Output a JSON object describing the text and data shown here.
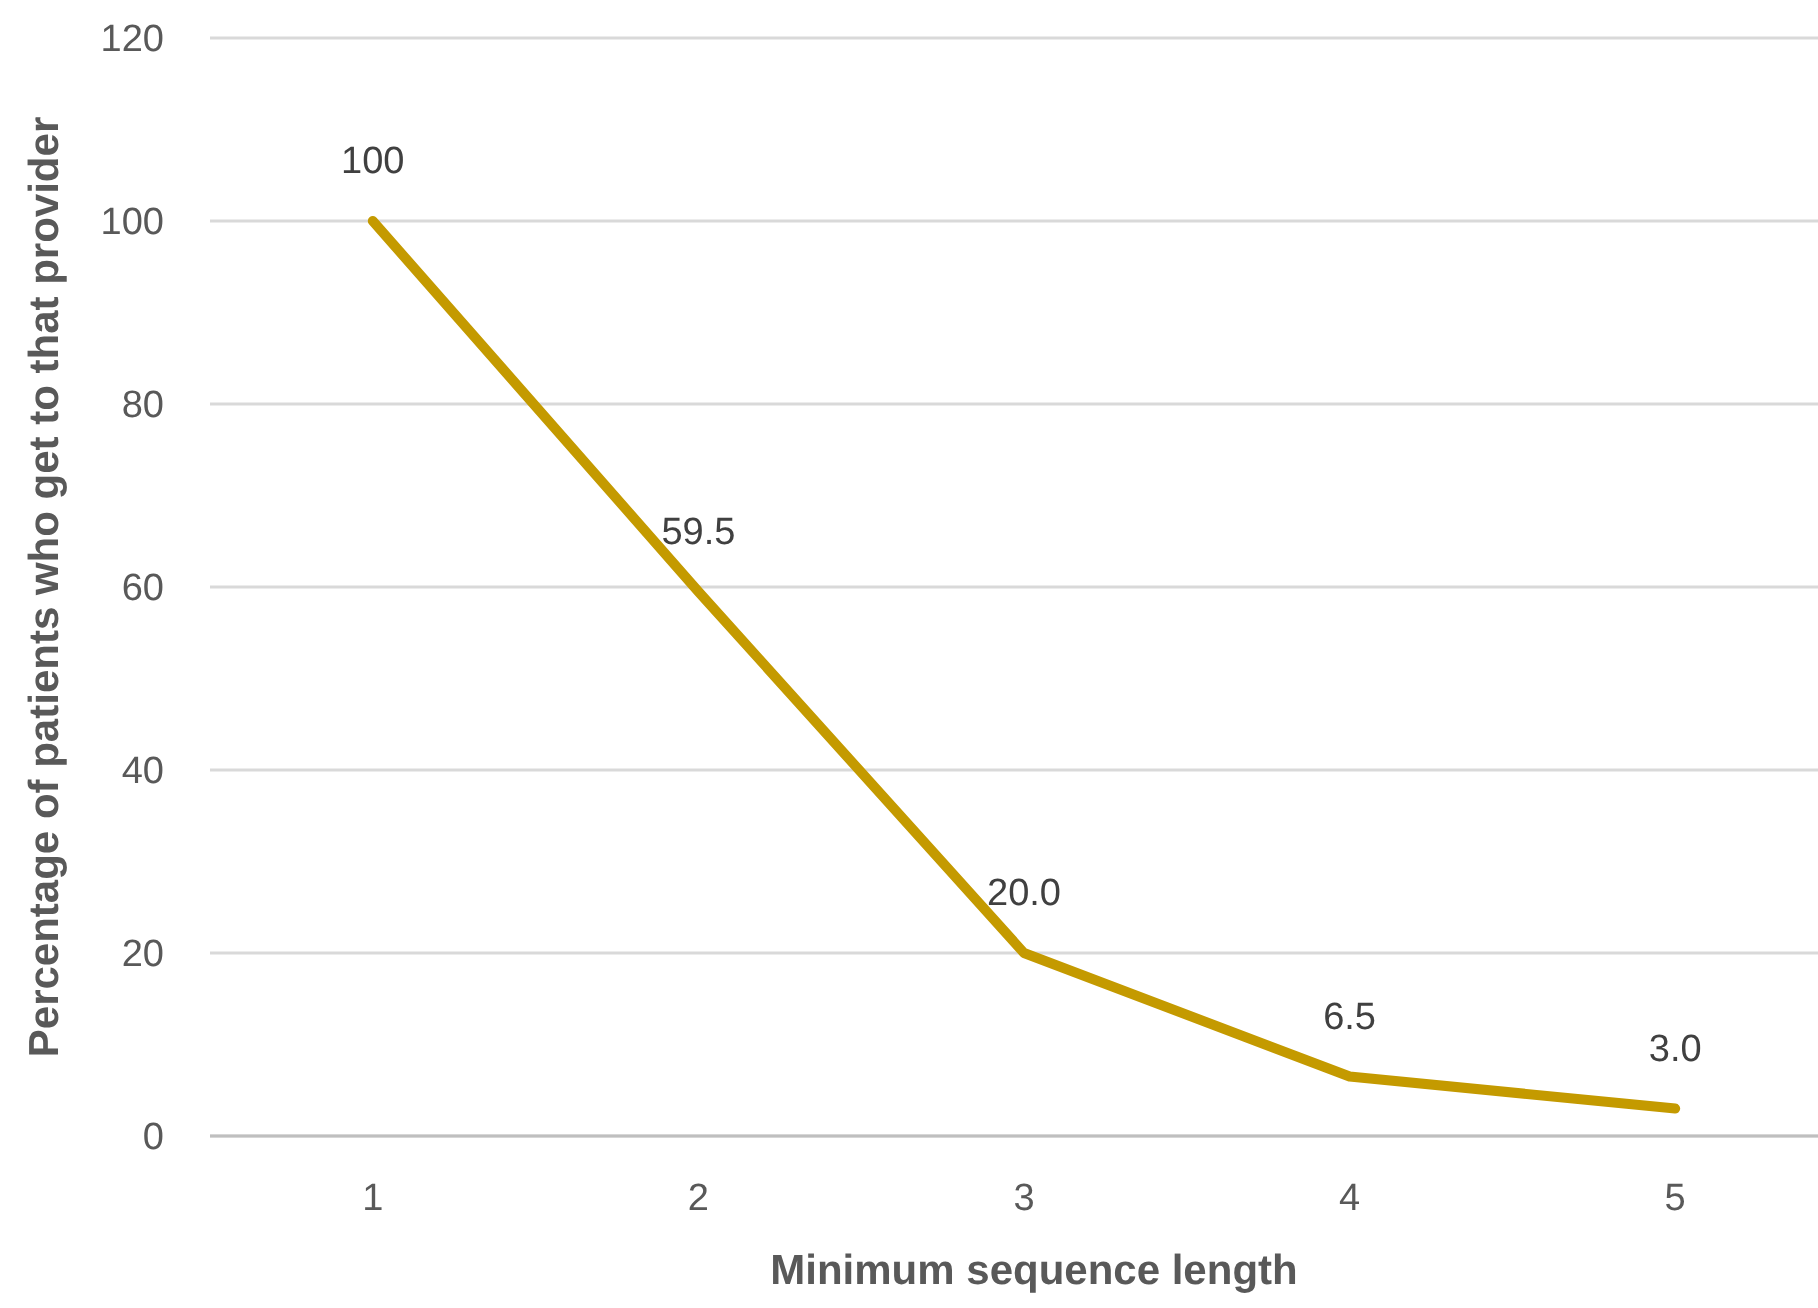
{
  "chart_data": {
    "type": "line",
    "xlabel": "Minimum sequence length",
    "ylabel": "Percentage of patients who get to that provider",
    "categories": [
      "1",
      "2",
      "3",
      "4",
      "5"
    ],
    "series": [
      {
        "color": "#c49a00",
        "values": [
          100,
          59.5,
          20,
          6.5,
          3
        ],
        "value_labels": [
          "100",
          "59.5",
          "20.0",
          "6.5",
          "3.0"
        ]
      }
    ],
    "ylim": [
      0,
      120
    ],
    "yticks": [
      0,
      20,
      40,
      60,
      80,
      100,
      120
    ],
    "grid": "y",
    "marker": "none",
    "line_style": "solid"
  }
}
